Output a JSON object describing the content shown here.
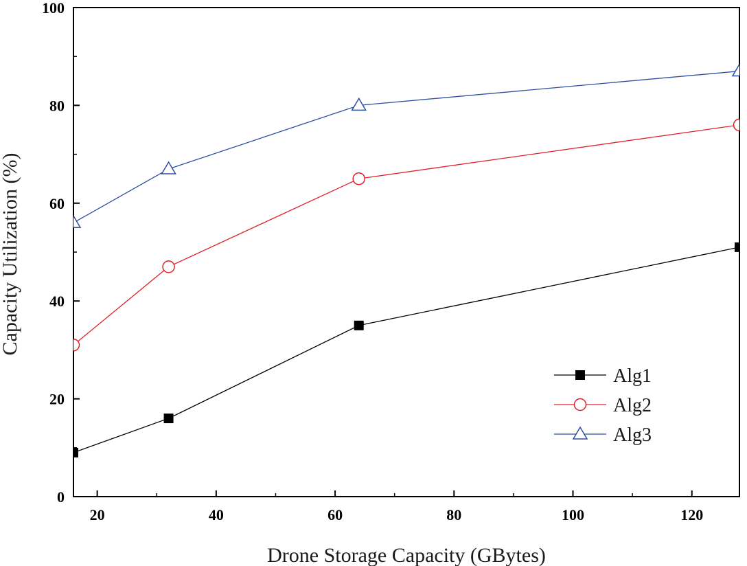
{
  "chart_data": {
    "type": "line",
    "xlabel": "Drone Storage Capacity (GBytes)",
    "ylabel": "Capacity Utilization (%)",
    "xlim": [
      16,
      128
    ],
    "ylim": [
      0,
      100
    ],
    "x_ticks": [
      20,
      40,
      60,
      80,
      100,
      120
    ],
    "x_minor_ticks": [
      30,
      50,
      70,
      90,
      110
    ],
    "y_ticks": [
      0,
      20,
      40,
      60,
      80,
      100
    ],
    "y_minor_ticks": [
      10,
      30,
      50,
      70,
      90
    ],
    "x": [
      16,
      32,
      64,
      128
    ],
    "legend_position": "lower-right",
    "series": [
      {
        "name": "Alg1",
        "values": [
          9,
          16,
          35,
          51
        ],
        "color": "#000000",
        "marker": "filled-square"
      },
      {
        "name": "Alg2",
        "values": [
          31,
          47,
          65,
          76
        ],
        "color": "#e0202a",
        "marker": "open-circle"
      },
      {
        "name": "Alg3",
        "values": [
          56,
          67,
          80,
          87
        ],
        "color": "#2f4f9f",
        "marker": "open-triangle"
      }
    ]
  }
}
